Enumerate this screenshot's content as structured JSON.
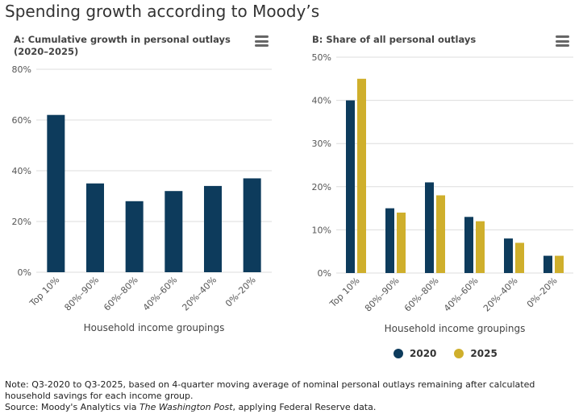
{
  "title": "Spending growth according to Moody’s",
  "colors": {
    "navy": "#0d3b5c",
    "gold": "#cfaf2c",
    "grid": "#dddddd"
  },
  "chart_data": [
    {
      "type": "bar",
      "title_line1": "A: Cumulative growth in personal outlays",
      "title_line2": "(2020–2025)",
      "categories": [
        "Top 10%",
        "80%–90%",
        "60%–80%",
        "40%–60%",
        "20%–40%",
        "0%–20%"
      ],
      "values": [
        62,
        35,
        28,
        32,
        34,
        37
      ],
      "xlabel": "Household income groupings",
      "ylim": [
        0,
        80
      ],
      "yticks": [
        0,
        20,
        40,
        60,
        80
      ],
      "ytick_labels": [
        "0%",
        "20%",
        "40%",
        "60%",
        "80%"
      ],
      "grid": true
    },
    {
      "type": "bar",
      "title_line1": "B: Share of all personal outlays",
      "categories": [
        "Top 10%",
        "80%–90%",
        "60%–80%",
        "40%–60%",
        "20%–40%",
        "0%–20%"
      ],
      "series": [
        {
          "name": "2020",
          "values": [
            40,
            15,
            21,
            13,
            8,
            4
          ]
        },
        {
          "name": "2025",
          "values": [
            45,
            14,
            18,
            12,
            7,
            4
          ]
        }
      ],
      "xlabel": "Household income groupings",
      "ylim": [
        0,
        50
      ],
      "yticks": [
        0,
        10,
        20,
        30,
        40,
        50
      ],
      "ytick_labels": [
        "0%",
        "10%",
        "20%",
        "30%",
        "40%",
        "50%"
      ],
      "grid": true,
      "legend": "bottom"
    }
  ],
  "note": {
    "line1": "Note: Q3-2020 to Q3-2025, based on 4-quarter moving average of nominal personal outlays remaining after calculated household savings for each income group.",
    "source_prefix": "Source: Moody's Analytics via ",
    "source_publication": "The Washington Post",
    "source_suffix": ", applying Federal Reserve data."
  }
}
